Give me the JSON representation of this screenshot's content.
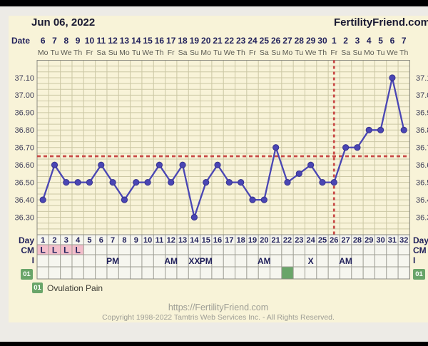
{
  "header": {
    "title": "Jun 06, 2022",
    "brand": "FertilityFriend.com"
  },
  "axis": {
    "date_label": "Date",
    "dates": [
      "6",
      "7",
      "8",
      "9",
      "10",
      "11",
      "12",
      "13",
      "14",
      "15",
      "16",
      "17",
      "18",
      "19",
      "20",
      "21",
      "22",
      "23",
      "24",
      "25",
      "26",
      "27",
      "28",
      "29",
      "30",
      "1",
      "2",
      "3",
      "4",
      "5",
      "6",
      "7"
    ],
    "weekdays": [
      "Mo",
      "Tu",
      "We",
      "Th",
      "Fr",
      "Sa",
      "Su",
      "Mo",
      "Tu",
      "We",
      "Th",
      "Fr",
      "Sa",
      "Su",
      "Mo",
      "Tu",
      "We",
      "Th",
      "Fr",
      "Sa",
      "Su",
      "Mo",
      "Tu",
      "We",
      "Th",
      "Fr",
      "Sa",
      "Su",
      "Mo",
      "Tu",
      "We",
      "Th"
    ],
    "temp_ticks": [
      "37.10",
      "37.00",
      "36.90",
      "36.80",
      "36.70",
      "36.60",
      "36.50",
      "36.40",
      "36.30"
    ]
  },
  "chart_data": {
    "type": "line",
    "x": [
      1,
      2,
      3,
      4,
      5,
      6,
      7,
      8,
      9,
      10,
      11,
      12,
      13,
      14,
      15,
      16,
      17,
      18,
      19,
      20,
      21,
      22,
      23,
      24,
      25,
      26,
      27,
      28,
      29,
      30,
      31,
      32
    ],
    "series": [
      {
        "name": "basal-body-temperature-celsius",
        "values": [
          36.4,
          36.6,
          36.5,
          36.5,
          36.5,
          36.6,
          36.5,
          36.4,
          36.5,
          36.5,
          36.6,
          36.5,
          36.6,
          36.3,
          36.5,
          36.6,
          36.5,
          36.5,
          36.4,
          36.4,
          36.7,
          36.5,
          36.55,
          36.6,
          36.5,
          36.5,
          36.7,
          36.7,
          36.8,
          36.8,
          37.1,
          36.8
        ]
      }
    ],
    "yticks": [
      37.1,
      37.0,
      36.9,
      36.8,
      36.7,
      36.6,
      36.5,
      36.4,
      36.3
    ],
    "ylim": [
      36.2,
      37.2
    ],
    "coverline": 36.65,
    "ovulation_day": 26,
    "grid": true,
    "legend_position": "none"
  },
  "table": {
    "day_label": "Day",
    "cm_label": "CM",
    "i_label": "I",
    "days": [
      "1",
      "2",
      "3",
      "4",
      "5",
      "6",
      "7",
      "8",
      "9",
      "10",
      "11",
      "12",
      "13",
      "14",
      "15",
      "16",
      "17",
      "18",
      "19",
      "20",
      "21",
      "22",
      "23",
      "24",
      "25",
      "26",
      "27",
      "28",
      "29",
      "30",
      "31",
      "32"
    ],
    "cm_entries": [
      {
        "day": 1,
        "label": "L"
      },
      {
        "day": 2,
        "label": "L"
      },
      {
        "day": 3,
        "label": "L"
      },
      {
        "day": 4,
        "label": "L"
      }
    ],
    "intercourse_entries": [
      {
        "day": 7,
        "label": "PM"
      },
      {
        "day": 12,
        "label": "AM"
      },
      {
        "day": 14,
        "label": "XX"
      },
      {
        "day": 15,
        "label": "PM"
      },
      {
        "day": 20,
        "label": "AM"
      },
      {
        "day": 24,
        "label": "X"
      },
      {
        "day": 27,
        "label": "AM"
      }
    ],
    "symbol_badge": "01",
    "symbol_marked_days": [
      22
    ]
  },
  "legend": {
    "badge": "01",
    "label": "Ovulation Pain"
  },
  "footer": {
    "url": "https://FertilityFriend.com",
    "copyright": "Copyright 1998-2022 Tamtris Web Services Inc. - All Rights Reserved."
  },
  "colors": {
    "panel": "#f8f3d8",
    "page": "#edebe6",
    "navy": "#22225c",
    "weekday_gray": "#5c5c54",
    "grid_olive": "#cbc7a4",
    "frame_gray": "#8b8b82",
    "table_bg": "#f6f6ef",
    "table_grid": "#9c9c92",
    "line_indigo": "#4a46b4",
    "dot_edge": "#37338f",
    "signal_red": "#c84a46",
    "cm_pink": "#f3becb",
    "symbol_green": "#69a569",
    "temp_label": "#3b3b57"
  }
}
